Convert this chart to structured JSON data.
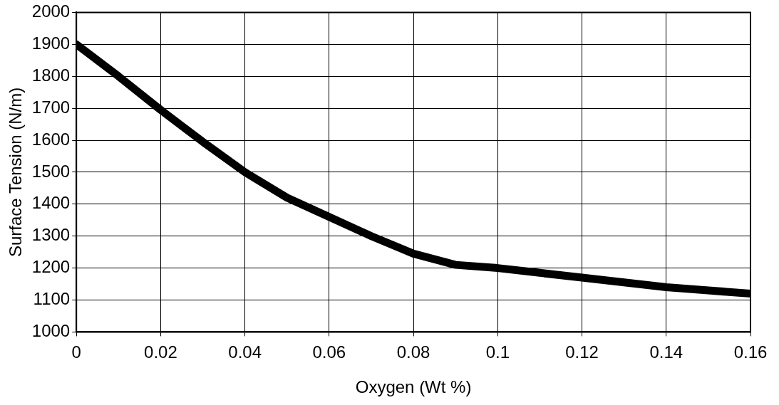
{
  "chart_data": {
    "type": "line",
    "xlabel": "Oxygen (Wt %)",
    "ylabel": "Surface Tension (N/m)",
    "x": [
      0,
      0.01,
      0.02,
      0.03,
      0.04,
      0.05,
      0.06,
      0.07,
      0.08,
      0.09,
      0.1,
      0.11,
      0.12,
      0.13,
      0.14,
      0.15,
      0.16
    ],
    "values": [
      1900,
      1800,
      1695,
      1595,
      1500,
      1420,
      1360,
      1300,
      1245,
      1210,
      1200,
      1185,
      1170,
      1155,
      1140,
      1130,
      1120
    ],
    "color": "#000000",
    "xlim": [
      0,
      0.16
    ],
    "xticks": [
      0,
      0.02,
      0.04,
      0.06,
      0.08,
      0.1,
      0.12,
      0.14,
      0.16
    ],
    "ylim": [
      1000,
      2000
    ],
    "yticks": [
      1000,
      1100,
      1200,
      1300,
      1400,
      1500,
      1600,
      1700,
      1800,
      1900,
      2000
    ],
    "grid": true,
    "marker": "none",
    "line_style": "solid"
  }
}
